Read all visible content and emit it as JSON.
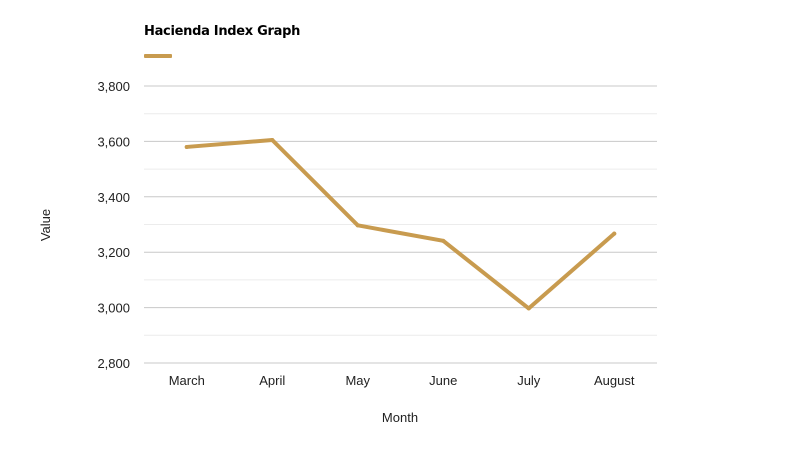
{
  "chart_data": {
    "type": "line",
    "title": "Hacienda Index Graph",
    "xlabel": "Month",
    "ylabel": "Value",
    "categories": [
      "March",
      "April",
      "May",
      "June",
      "July",
      "August"
    ],
    "series": [
      {
        "values": [
          3580,
          3605,
          3297,
          3241,
          2997,
          3267
        ],
        "color": "#c89b4f"
      }
    ],
    "ylim": [
      2800,
      3800
    ],
    "yticks": [
      2800,
      3000,
      3200,
      3400,
      3600,
      3800
    ],
    "ytick_labels": [
      "2,800",
      "3,000",
      "3,200",
      "3,400",
      "3,600",
      "3,800"
    ],
    "grid": true,
    "legend_position": "top-left"
  }
}
